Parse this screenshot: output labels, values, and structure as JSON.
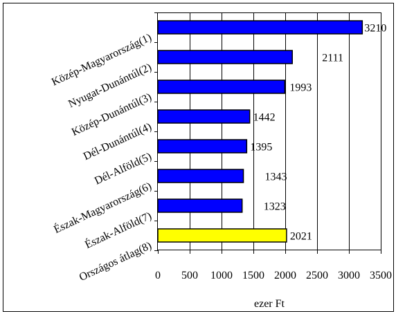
{
  "chart_data": {
    "type": "bar",
    "orientation": "horizontal",
    "categories": [
      "Közép-Magyarország(1)",
      "Nyugat-Dunántúl(2)",
      "Közép-Dunántúl(3)",
      "Dél-Dunántúl(4)",
      "Dél-Alföld(5)",
      "Észak-Magyarország(6)",
      "Észak-Alföld(7)",
      "Országos átlag(8)"
    ],
    "values": [
      3210,
      2111,
      1993,
      1442,
      1395,
      1343,
      1323,
      2021
    ],
    "data_labels": [
      "3210",
      "2111",
      "1993",
      "1442",
      "1395",
      "1343",
      "1323",
      "2021"
    ],
    "bar_colors": [
      "#0000ff",
      "#0000ff",
      "#0000ff",
      "#0000ff",
      "#0000ff",
      "#0000ff",
      "#0000ff",
      "#ffff00"
    ],
    "xlabel": "ezer Ft",
    "xlim": [
      0,
      3500
    ],
    "xticks": [
      0,
      500,
      1000,
      1500,
      2000,
      2500,
      3000,
      3500
    ],
    "grid": "vertical"
  }
}
